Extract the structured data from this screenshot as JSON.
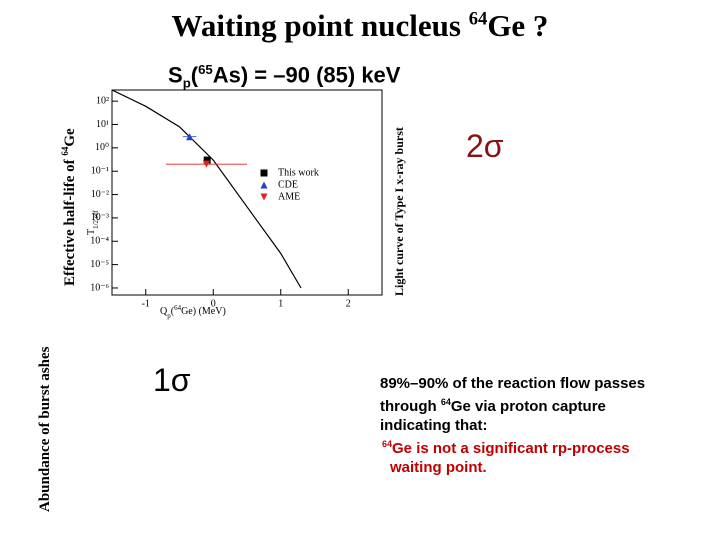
{
  "title": [
    {
      "text": "Waiting point nucleus "
    },
    {
      "text": "64",
      "style": "sup"
    },
    {
      "text": "Ge ?"
    }
  ],
  "subtitle": [
    {
      "text": "S"
    },
    {
      "text": "p",
      "style": "sub"
    },
    {
      "text": "("
    },
    {
      "text": "65",
      "style": "sup"
    },
    {
      "text": "As) = –90 (85) keV"
    }
  ],
  "side_labels": {
    "half_life": [
      {
        "text": "Effective half-life of "
      },
      {
        "text": "64",
        "style": "sup"
      },
      {
        "text": "Ge"
      }
    ],
    "light_curve": [
      {
        "text": "Light curve of Type I x-ray burst"
      }
    ],
    "abundance": [
      {
        "text": "Abundance of burst ashes"
      }
    ]
  },
  "sigma_2": "2σ",
  "sigma_1": "1σ",
  "note": {
    "lines": [
      [
        {
          "text": "89%–90% of the reaction flow passes"
        }
      ],
      [
        {
          "text": "through "
        },
        {
          "text": "64",
          "style": "sup"
        },
        {
          "text": "Ge via proton capture"
        }
      ],
      [
        {
          "text": "indicating that:"
        }
      ]
    ],
    "conclusion": [
      [
        {
          "text": "64",
          "style": "sup"
        },
        {
          "text": "Ge is not a significant rp-process"
        }
      ],
      [
        {
          "text": "waiting point."
        }
      ]
    ],
    "conclusion_color": "#c00000"
  },
  "chart_data": {
    "type": "line",
    "log_y": true,
    "x_label": [
      {
        "text": "Q"
      },
      {
        "text": "p",
        "style": "sub"
      },
      {
        "text": "("
      },
      {
        "text": "64",
        "style": "sup"
      },
      {
        "text": "Ge) (MeV)"
      }
    ],
    "y_label": [
      {
        "text": "T"
      },
      {
        "text": "1/2,eff",
        "style": "sub"
      }
    ],
    "xlim": [
      -1.5,
      2.5
    ],
    "xticks": [
      -1,
      0,
      1,
      2
    ],
    "ylim": [
      5e-07,
      300
    ],
    "yticks": [
      {
        "value": 100,
        "label": "10²"
      },
      {
        "value": 10,
        "label": "10¹"
      },
      {
        "value": 1,
        "label": "10⁰"
      },
      {
        "value": 0.1,
        "label": "10⁻¹"
      },
      {
        "value": 0.01,
        "label": "10⁻²"
      },
      {
        "value": 0.001,
        "label": "10⁻³"
      },
      {
        "value": 0.0001,
        "label": "10⁻⁴"
      },
      {
        "value": 1e-05,
        "label": "10⁻⁵"
      },
      {
        "value": 1e-06,
        "label": "10⁻⁶"
      }
    ],
    "curve": {
      "color": "#000000",
      "x": [
        -1.5,
        -1,
        -0.5,
        0,
        0.5,
        1,
        1.3
      ],
      "values": [
        300,
        60,
        8,
        0.3,
        0.003,
        3e-05,
        1e-06
      ]
    },
    "series": [
      {
        "name": "This work",
        "color": "#000000",
        "marker": "square",
        "x": [
          -0.09
        ],
        "values": [
          0.3
        ],
        "xerr": [
          0.05
        ]
      },
      {
        "name": "CDE",
        "color": "#2040d0",
        "marker": "triangle",
        "x": [
          -0.35
        ],
        "values": [
          3
        ],
        "xerr": [
          0.1
        ]
      },
      {
        "name": "AME",
        "color": "#e02020",
        "marker": "triangle-down",
        "x": [
          -0.1
        ],
        "values": [
          0.2
        ],
        "xerr": [
          0.6
        ]
      }
    ]
  }
}
